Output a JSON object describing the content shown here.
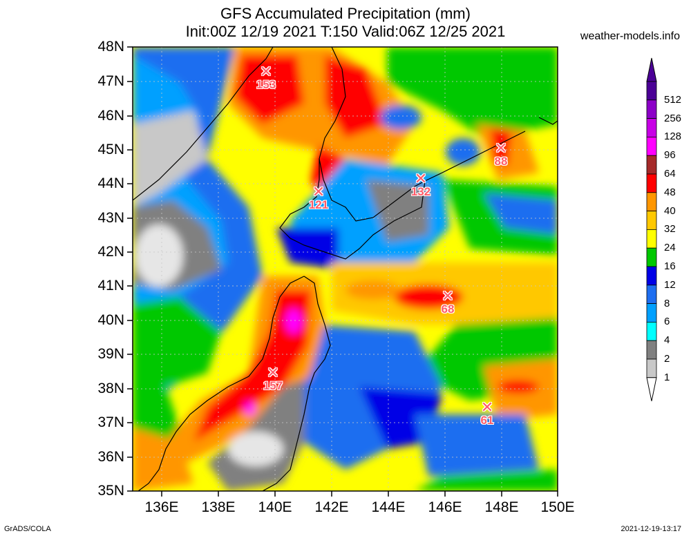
{
  "header": {
    "title_line1": "GFS Accumulated Precipitation (mm)",
    "title_line2": "Init:00Z 12/19 2021 T:150 Valid:06Z 12/25 2021",
    "site": "weather-models.info"
  },
  "axes": {
    "lat_labels": [
      "48N",
      "47N",
      "46N",
      "45N",
      "44N",
      "43N",
      "42N",
      "41N",
      "40N",
      "39N",
      "38N",
      "37N",
      "36N",
      "35N"
    ],
    "lon_labels": [
      "136E",
      "138E",
      "140E",
      "142E",
      "144E",
      "146E",
      "148E",
      "150E"
    ]
  },
  "colorbar": {
    "levels": [
      "512",
      "256",
      "128",
      "96",
      "64",
      "48",
      "40",
      "32",
      "24",
      "16",
      "12",
      "8",
      "6",
      "4",
      "2",
      "1"
    ],
    "colors": [
      "#4b0096",
      "#8c00c8",
      "#c800e6",
      "#ff00ff",
      "#a52a2a",
      "#ff0000",
      "#ff9600",
      "#ffc800",
      "#ffff00",
      "#00c800",
      "#0000e6",
      "#1e6ef0",
      "#00a0ff",
      "#00ffff",
      "#808080",
      "#c8c8c8"
    ]
  },
  "markers": [
    {
      "value": "153"
    },
    {
      "value": "121"
    },
    {
      "value": "132"
    },
    {
      "value": "88"
    },
    {
      "value": "68"
    },
    {
      "value": "157"
    },
    {
      "value": "61"
    }
  ],
  "footer": {
    "left": "GrADS/COLA",
    "right": "2021-12-19-13:17"
  }
}
